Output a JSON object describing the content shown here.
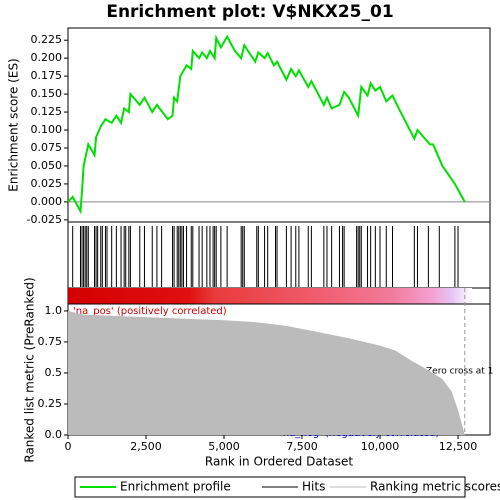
{
  "chart_data": {
    "type": "gsea",
    "title": "Enrichment plot: V$NKX25_01",
    "y_label": "Enrichment score (ES)",
    "y2_label": "Ranked list metric (PreRanked)",
    "x_label": "Rank in Ordered Dataset",
    "pos_label": "'na_pos' (positively correlated)",
    "neg_label": "'na_neg' (negatively correlated)",
    "zero_cross_label": "Zero cross at 1",
    "xlim": [
      0,
      13525
    ],
    "xticks": [
      0,
      {
        "value": 2500,
        "label": "2,500"
      },
      {
        "value": 5000,
        "label": "5,000"
      },
      {
        "value": 7500,
        "label": "7,500"
      },
      {
        "value": 10000,
        "label": "10,000"
      },
      {
        "value": 12500,
        "label": "12,500"
      }
    ],
    "ylim": [
      -0.028,
      0.242
    ],
    "yticks": [
      {
        "value": -0.025,
        "label": "-0.025"
      },
      {
        "value": 0,
        "label": "0.000"
      },
      {
        "value": 0.025,
        "label": "0.025"
      },
      {
        "value": 0.05,
        "label": "0.050"
      },
      {
        "value": 0.075,
        "label": "0.075"
      },
      {
        "value": 0.1,
        "label": "0.100"
      },
      {
        "value": 0.125,
        "label": "0.125"
      },
      {
        "value": 0.15,
        "label": "0.150"
      },
      {
        "value": 0.175,
        "label": "0.175"
      },
      {
        "value": 0.2,
        "label": "0.200"
      },
      {
        "value": 0.225,
        "label": "0.225"
      }
    ],
    "y2lim": [
      0,
      1.056
    ],
    "y2ticks": [
      {
        "value": 0,
        "label": "0.0"
      },
      0.25,
      0.5,
      0.75,
      {
        "value": 1,
        "label": "1.0"
      }
    ],
    "series": [
      {
        "name": "Enrichment profile",
        "color": "#00e000",
        "x": [
          0,
          150,
          400,
          450,
          500,
          550,
          650,
          850,
          900,
          1050,
          1200,
          1400,
          1550,
          1700,
          1800,
          1950,
          2000,
          2300,
          2450,
          2700,
          2850,
          3200,
          3350,
          3400,
          3500,
          3600,
          3800,
          3950,
          4000,
          4200,
          4300,
          4450,
          4550,
          4700,
          4750,
          4900,
          5100,
          5350,
          5550,
          5650,
          6000,
          6100,
          6300,
          6400,
          6600,
          6700,
          7000,
          7150,
          7300,
          7400,
          7700,
          7800,
          8200,
          8300,
          8450,
          8700,
          8850,
          9000,
          9300,
          9400,
          9600,
          9700,
          9850,
          10000,
          10200,
          10400,
          10600,
          11100,
          11200,
          11600,
          11700,
          12000,
          12400,
          12717
        ],
        "values": [
          0,
          0.007,
          -0.013,
          0.015,
          0.05,
          0.06,
          0.08,
          0.065,
          0.09,
          0.105,
          0.115,
          0.11,
          0.12,
          0.11,
          0.13,
          0.125,
          0.15,
          0.135,
          0.145,
          0.125,
          0.135,
          0.115,
          0.12,
          0.145,
          0.14,
          0.175,
          0.19,
          0.185,
          0.21,
          0.2,
          0.208,
          0.2,
          0.21,
          0.2,
          0.228,
          0.215,
          0.23,
          0.21,
          0.2,
          0.218,
          0.195,
          0.208,
          0.2,
          0.207,
          0.19,
          0.195,
          0.17,
          0.185,
          0.175,
          0.183,
          0.16,
          0.168,
          0.135,
          0.145,
          0.13,
          0.135,
          0.153,
          0.145,
          0.12,
          0.16,
          0.148,
          0.165,
          0.155,
          0.16,
          0.14,
          0.148,
          0.13,
          0.088,
          0.1,
          0.08,
          0.08,
          0.05,
          0.025,
          0
        ]
      },
      {
        "name": "Hits",
        "color": "#000000",
        "x": [
          150,
          400,
          450,
          500,
          550,
          600,
          650,
          850,
          900,
          950,
          1050,
          1100,
          1200,
          1250,
          1400,
          1550,
          1700,
          1800,
          1850,
          1950,
          2000,
          2300,
          2450,
          2700,
          2850,
          3000,
          3350,
          3400,
          3500,
          3550,
          3600,
          3650,
          3700,
          3800,
          3950,
          4000,
          4200,
          4300,
          4450,
          4550,
          4650,
          4700,
          4750,
          4900,
          5100,
          5550,
          5600,
          5650,
          6050,
          6100,
          6300,
          6400,
          6650,
          6700,
          7000,
          7150,
          7300,
          7400,
          7700,
          7800,
          8200,
          8300,
          8450,
          8700,
          8800,
          8850,
          9250,
          9300,
          9350,
          9400,
          9600,
          9700,
          9850,
          10000,
          10200,
          10400,
          11100,
          11200,
          11550,
          11900,
          12400,
          12500
        ]
      },
      {
        "name": "Ranking metric scores",
        "color": "#bbbbbb",
        "x": [
          0,
          500,
          2000,
          4000,
          5000,
          6000,
          7000,
          8000,
          9000,
          10000,
          10500,
          11000,
          11500,
          12000,
          12300,
          12500,
          12717
        ],
        "values": [
          1.0,
          0.97,
          0.955,
          0.935,
          0.925,
          0.91,
          0.88,
          0.83,
          0.78,
          0.72,
          0.68,
          0.6,
          0.53,
          0.45,
          0.35,
          0.2,
          0
        ]
      }
    ]
  }
}
